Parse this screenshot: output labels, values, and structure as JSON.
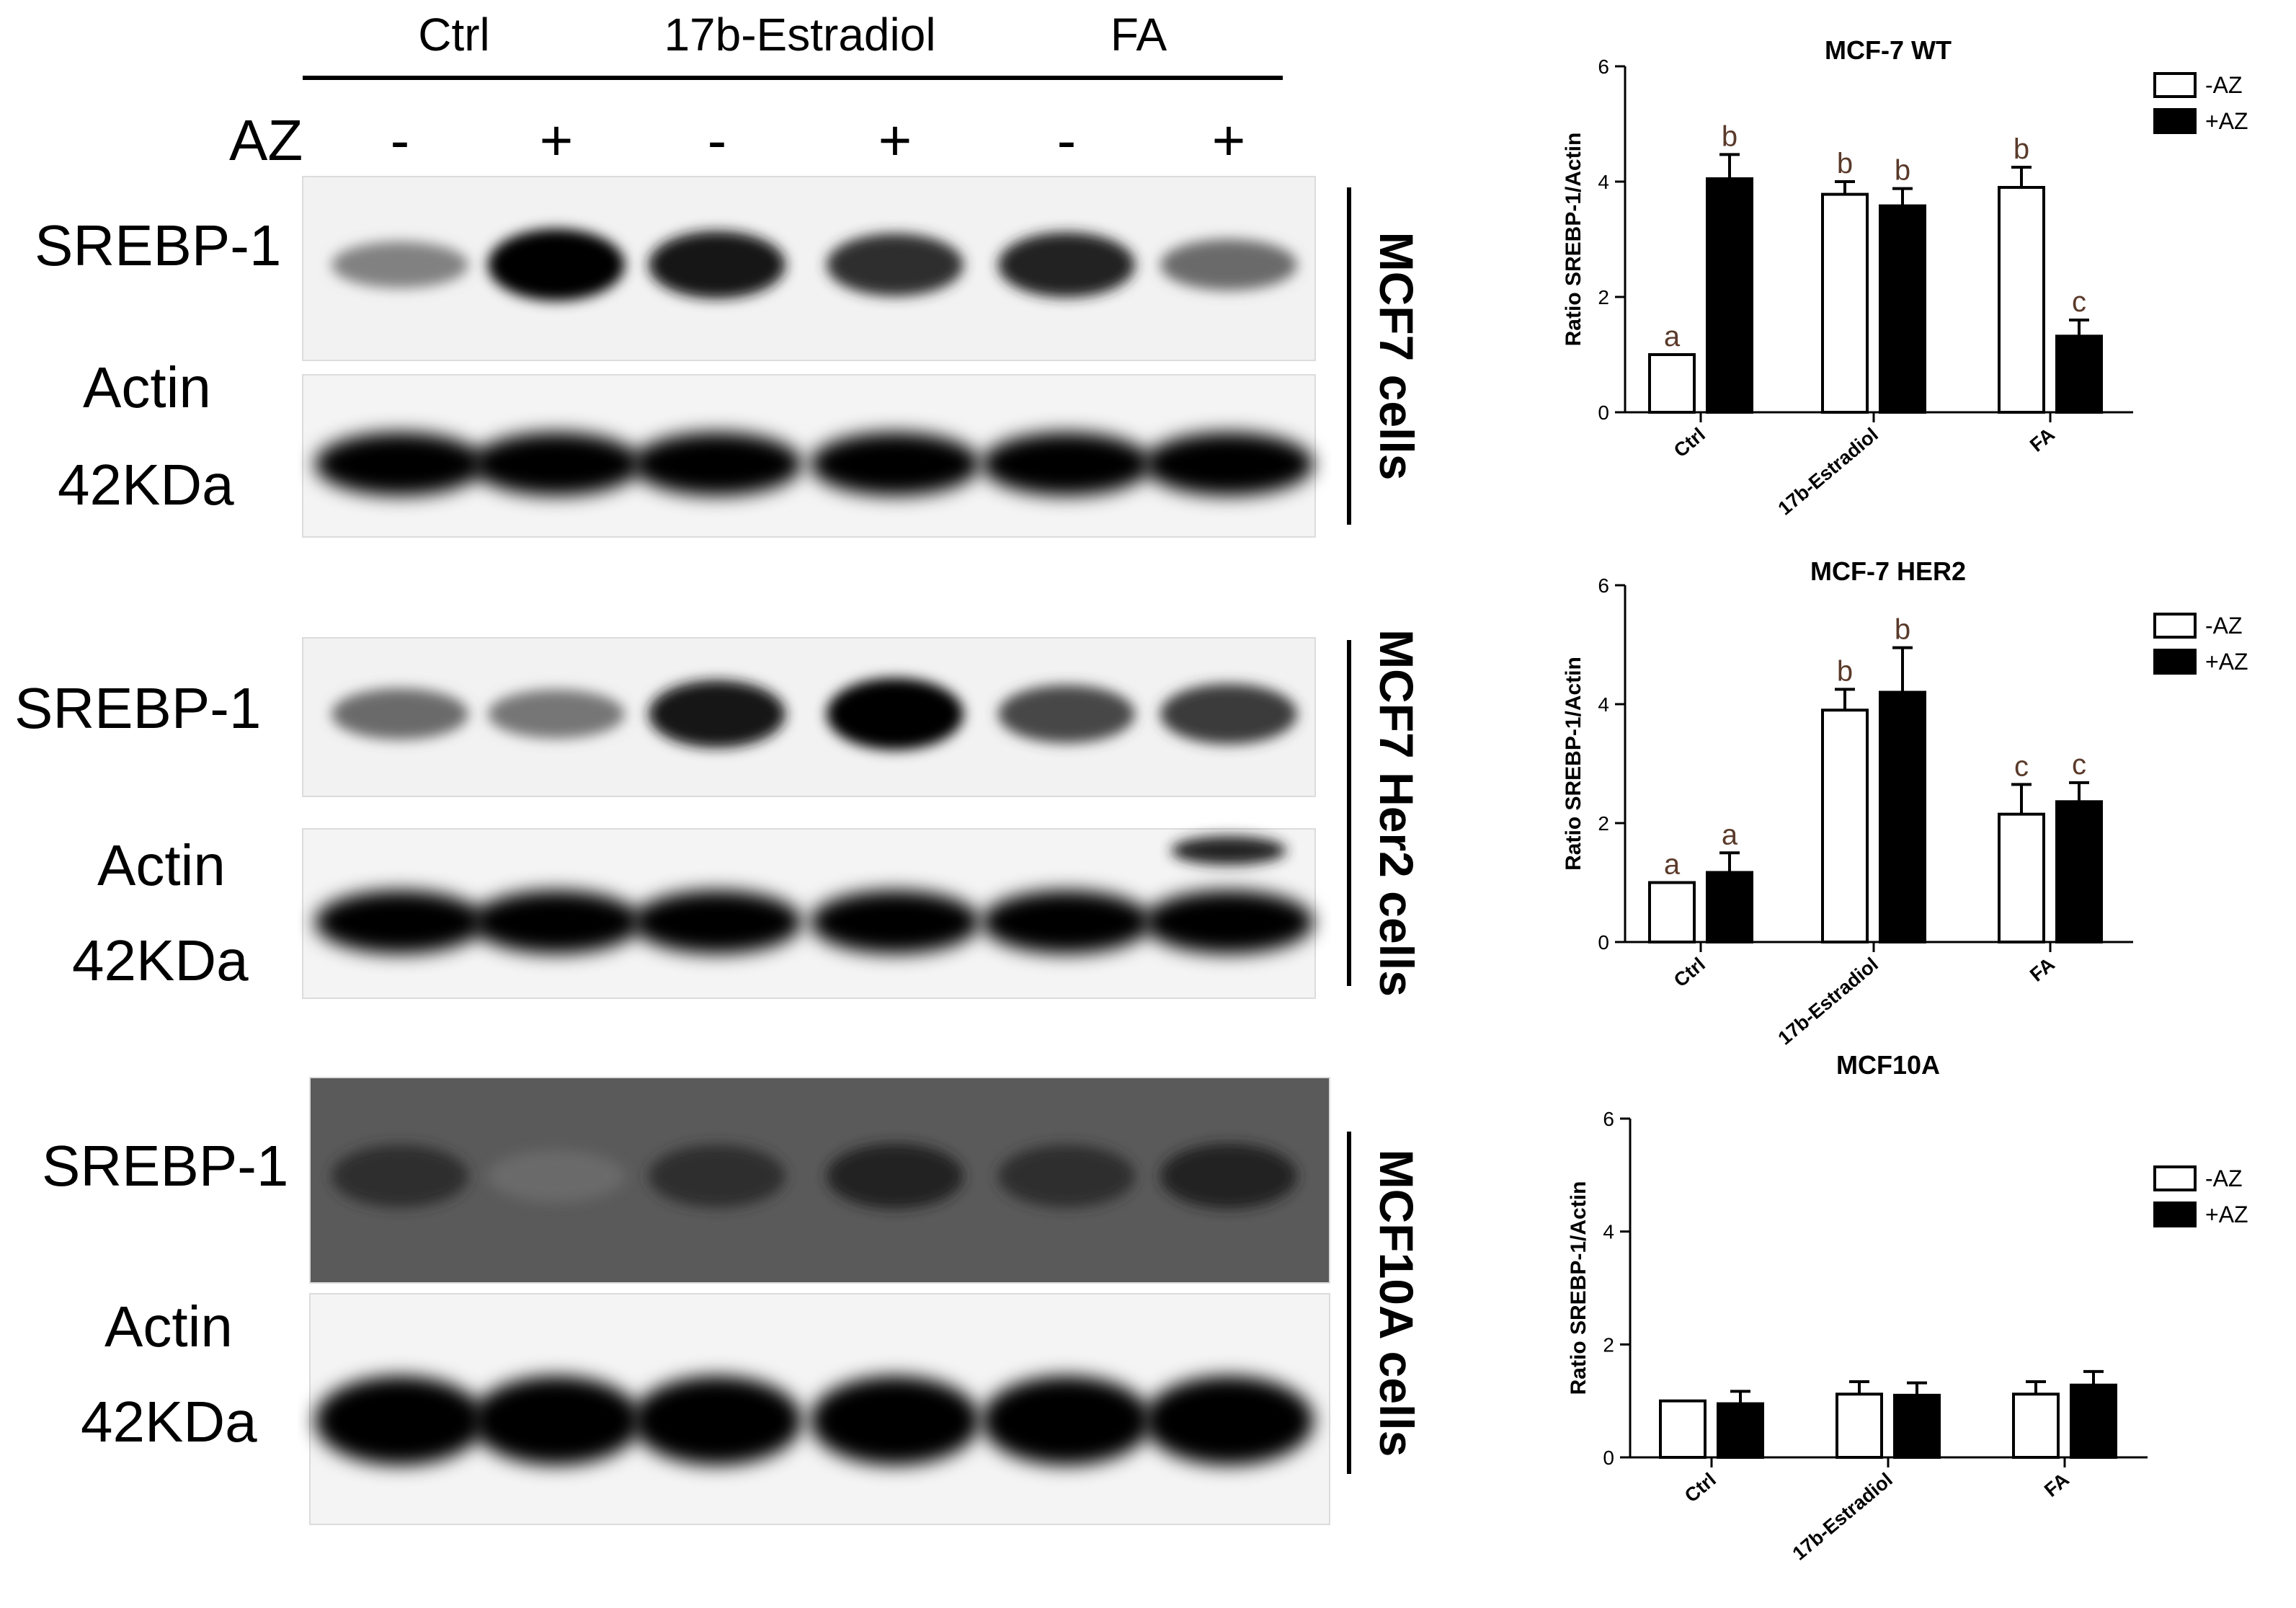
{
  "header": {
    "groups": [
      "Ctrl",
      "17b-Estradiol",
      "FA"
    ],
    "az_label": "AZ",
    "lane_signs": [
      "-",
      "+",
      "-",
      "+",
      "-",
      "+"
    ]
  },
  "blots": [
    {
      "cell_label": "MCF7 cells",
      "target_label": "SREBP-1",
      "loading_label_1": "Actin",
      "loading_label_2": "42KDa",
      "background": "light",
      "target_intensity": [
        0.45,
        1.0,
        0.9,
        0.8,
        0.85,
        0.55
      ],
      "loading_intensity": [
        1,
        1,
        1,
        1,
        1,
        1
      ],
      "extra_band_lane": null
    },
    {
      "cell_label": "MCF7 Her2 cells",
      "target_label": "SREBP-1",
      "loading_label_1": "Actin",
      "loading_label_2": "42KDa",
      "background": "light",
      "target_intensity": [
        0.55,
        0.5,
        0.9,
        1.0,
        0.7,
        0.75
      ],
      "loading_intensity": [
        1,
        1,
        1,
        1,
        1,
        1
      ],
      "extra_band_lane": 5
    },
    {
      "cell_label": "MCF10A cells",
      "target_label": "SREBP-1",
      "loading_label_1": "Actin",
      "loading_label_2": "42KDa",
      "background": "dark",
      "target_intensity": [
        0.8,
        0.55,
        0.8,
        0.85,
        0.8,
        0.85
      ],
      "loading_intensity": [
        1,
        1,
        1,
        1,
        1,
        1
      ],
      "extra_band_lane": null
    }
  ],
  "chart_data": [
    {
      "type": "bar",
      "title": "MCF-7 WT",
      "ylabel": "Ratio SREBP-1/Actin",
      "xlabel": "",
      "ylim": [
        0,
        6
      ],
      "yticks": [
        0,
        2,
        4,
        6
      ],
      "categories": [
        "Ctrl",
        "17b-Estradiol",
        "FA"
      ],
      "series": [
        {
          "name": "-AZ",
          "fill": "#ffffff",
          "values": [
            1.0,
            3.78,
            3.9
          ],
          "errors": [
            0.0,
            0.22,
            0.35
          ],
          "letters": [
            "a",
            "b",
            "b"
          ]
        },
        {
          "name": "+AZ",
          "fill": "#000000",
          "values": [
            4.05,
            3.58,
            1.32
          ],
          "errors": [
            0.42,
            0.3,
            0.28
          ],
          "letters": [
            "b",
            "b",
            "c"
          ]
        }
      ],
      "legend_position": "top-right",
      "grid": false
    },
    {
      "type": "bar",
      "title": "MCF-7 HER2",
      "ylabel": "Ratio SREBP-1/Actin",
      "xlabel": "",
      "ylim": [
        0,
        6
      ],
      "yticks": [
        0,
        2,
        4,
        6
      ],
      "categories": [
        "Ctrl",
        "17b-Estradiol",
        "FA"
      ],
      "series": [
        {
          "name": "-AZ",
          "fill": "#ffffff",
          "values": [
            1.0,
            3.9,
            2.15
          ],
          "errors": [
            0.0,
            0.35,
            0.5
          ],
          "letters": [
            "a",
            "b",
            "c"
          ]
        },
        {
          "name": "+AZ",
          "fill": "#000000",
          "values": [
            1.17,
            4.2,
            2.36
          ],
          "errors": [
            0.33,
            0.75,
            0.32
          ],
          "letters": [
            "a",
            "b",
            "c"
          ]
        }
      ],
      "legend_position": "top-right",
      "grid": false
    },
    {
      "type": "bar",
      "title": "MCF10A",
      "ylabel": "Ratio SREBP-1/Actin",
      "xlabel": "",
      "ylim": [
        0,
        6
      ],
      "yticks": [
        0,
        2,
        4,
        6
      ],
      "categories": [
        "Ctrl",
        "17b-Estradiol",
        "FA"
      ],
      "series": [
        {
          "name": "-AZ",
          "fill": "#ffffff",
          "values": [
            1.0,
            1.12,
            1.12
          ],
          "errors": [
            0.0,
            0.22,
            0.22
          ],
          "letters": [
            "",
            "",
            ""
          ]
        },
        {
          "name": "+AZ",
          "fill": "#000000",
          "values": [
            0.95,
            1.1,
            1.28
          ],
          "errors": [
            0.22,
            0.22,
            0.24
          ],
          "letters": [
            "",
            "",
            ""
          ]
        }
      ],
      "legend_position": "top-right",
      "grid": false
    }
  ]
}
